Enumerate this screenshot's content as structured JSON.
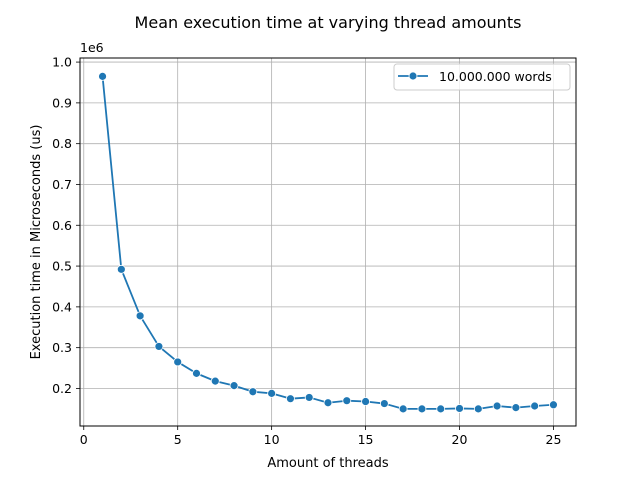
{
  "chart_data": {
    "type": "line",
    "title": "Mean execution time at varying thread amounts",
    "xlabel": "Amount of threads",
    "ylabel": "Execution time in Microseconds (us)",
    "y_offset_label": "1e6",
    "y_scale_factor": 1000000,
    "xlim": [
      -0.2,
      26.2
    ],
    "ylim": [
      0.108,
      1.01
    ],
    "x_ticks": [
      0,
      5,
      10,
      15,
      20,
      25
    ],
    "y_ticks": [
      0.2,
      0.3,
      0.4,
      0.5,
      0.6,
      0.7,
      0.8,
      0.9,
      1.0
    ],
    "y_tick_labels": [
      "0.2",
      "0.3",
      "0.4",
      "0.5",
      "0.6",
      "0.7",
      "0.8",
      "0.9",
      "1.0"
    ],
    "grid": true,
    "legend_position": "top-right",
    "series": [
      {
        "name": "10.000.000 words",
        "color": "#1f77b4",
        "marker": "circle",
        "x": [
          1,
          2,
          3,
          4,
          5,
          6,
          7,
          8,
          9,
          10,
          11,
          12,
          13,
          14,
          15,
          16,
          17,
          18,
          19,
          20,
          21,
          22,
          23,
          24,
          25
        ],
        "y": [
          0.965,
          0.492,
          0.378,
          0.303,
          0.265,
          0.237,
          0.218,
          0.207,
          0.192,
          0.188,
          0.175,
          0.178,
          0.165,
          0.17,
          0.168,
          0.163,
          0.15,
          0.15,
          0.15,
          0.151,
          0.15,
          0.157,
          0.153,
          0.157,
          0.16
        ]
      }
    ]
  }
}
